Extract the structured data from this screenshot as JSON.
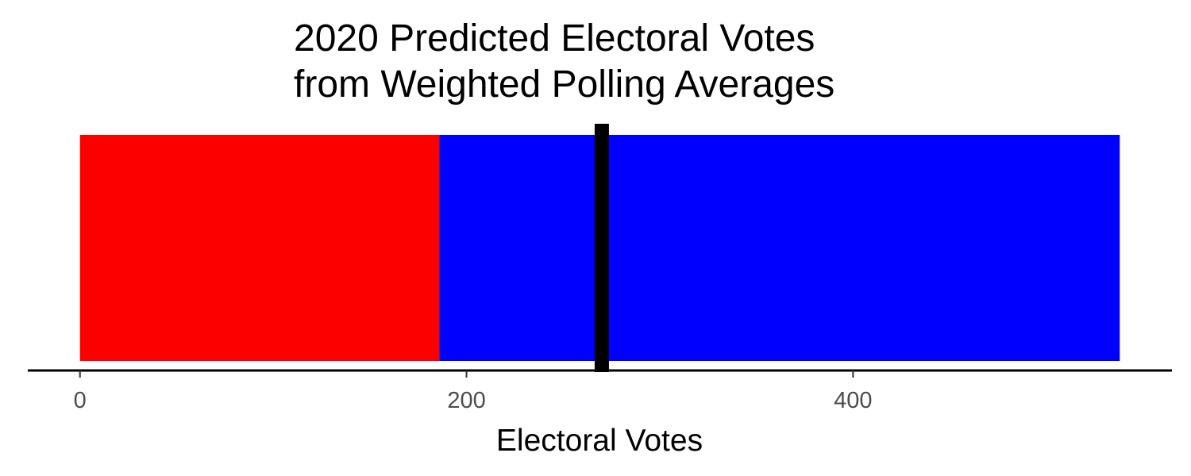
{
  "chart_data": {
    "type": "bar",
    "orientation": "horizontal",
    "stacked": true,
    "title": [
      "2020 Predicted Electoral Votes",
      "from Weighted Polling Averages"
    ],
    "xlabel": "Electoral Votes",
    "ylabel": "",
    "xlim": [
      -27,
      565
    ],
    "x_ticks": [
      0,
      200,
      400
    ],
    "x_tick_labels": [
      "0",
      "200",
      "400"
    ],
    "grid": false,
    "legend": "none",
    "series": [
      {
        "color": "#fc0000",
        "values": [
          186
        ]
      },
      {
        "color": "#0000ff",
        "values": [
          352
        ]
      }
    ],
    "reference_line": {
      "x": 270,
      "color": "#000000"
    },
    "axis_color": "#000000"
  }
}
